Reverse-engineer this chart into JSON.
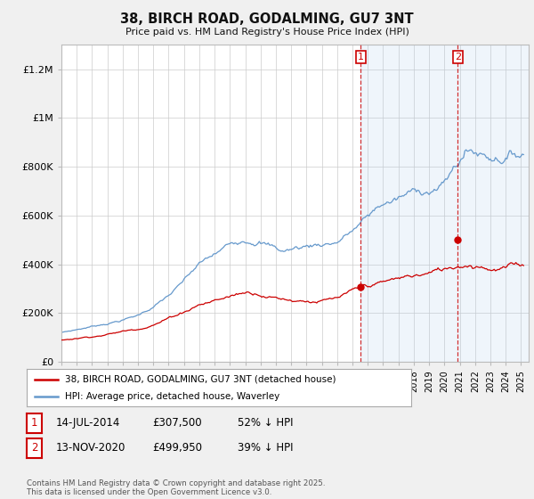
{
  "title": "38, BIRCH ROAD, GODALMING, GU7 3NT",
  "subtitle": "Price paid vs. HM Land Registry's House Price Index (HPI)",
  "ylabel_ticks": [
    "£0",
    "£200K",
    "£400K",
    "£600K",
    "£800K",
    "£1M",
    "£1.2M"
  ],
  "ytick_vals": [
    0,
    200000,
    400000,
    600000,
    800000,
    1000000,
    1200000
  ],
  "ylim": [
    0,
    1300000
  ],
  "xlim_start": 1995.0,
  "xlim_end": 2025.5,
  "legend_line1": "38, BIRCH ROAD, GODALMING, GU7 3NT (detached house)",
  "legend_line2": "HPI: Average price, detached house, Waverley",
  "sale1_date": "14-JUL-2014",
  "sale1_price": "£307,500",
  "sale1_hpi": "52% ↓ HPI",
  "sale2_date": "13-NOV-2020",
  "sale2_price": "£499,950",
  "sale2_hpi": "39% ↓ HPI",
  "footer": "Contains HM Land Registry data © Crown copyright and database right 2025.\nThis data is licensed under the Open Government Licence v3.0.",
  "red_color": "#cc0000",
  "blue_color": "#6699cc",
  "sale1_x": 2014.54,
  "sale1_price_val": 307500,
  "sale2_x": 2020.87,
  "sale2_price_val": 499950,
  "background_color": "#f0f0f0",
  "plot_bg": "#ffffff",
  "shade_color": "#ddeeff"
}
